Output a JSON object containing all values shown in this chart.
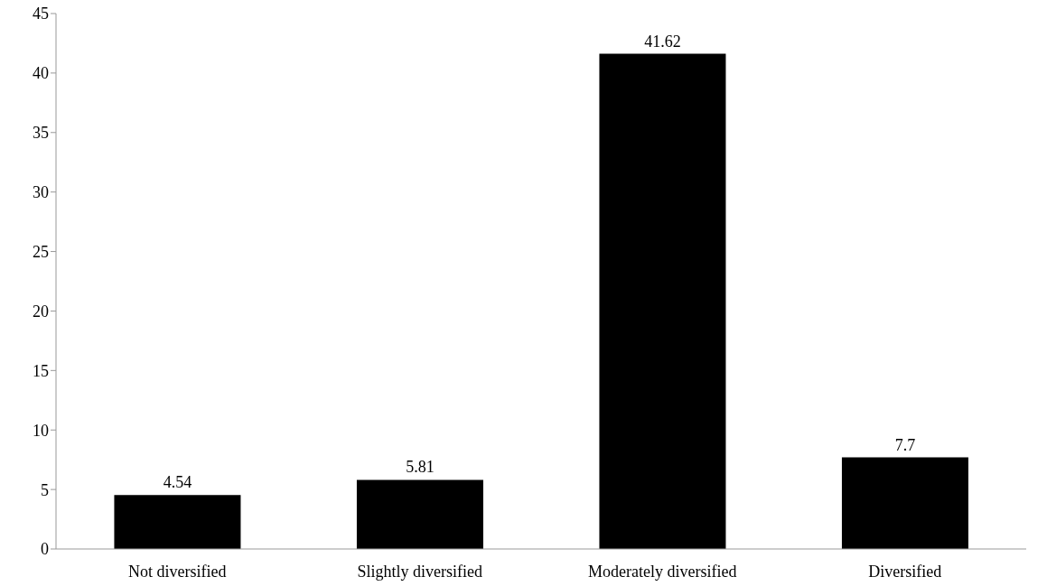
{
  "chart_data": {
    "type": "bar",
    "categories": [
      "Not diversified",
      "Slightly diversified",
      "Moderately diversified",
      "Diversified"
    ],
    "values": [
      4.54,
      5.81,
      41.62,
      7.7
    ],
    "color": "#000000",
    "ylim": [
      0,
      45
    ],
    "yticks": [
      0,
      5,
      10,
      15,
      20,
      25,
      30,
      35,
      40,
      45
    ],
    "grid": false,
    "data_labels": true,
    "legend": false
  }
}
